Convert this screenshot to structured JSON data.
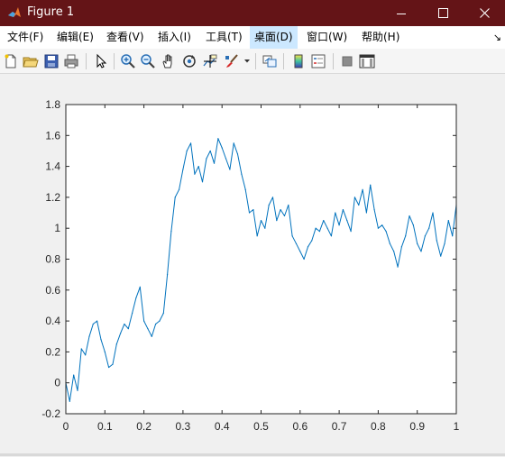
{
  "window": {
    "title": "Figure 1"
  },
  "menu": {
    "items": [
      {
        "label": "文件(F)"
      },
      {
        "label": "编辑(E)"
      },
      {
        "label": "查看(V)"
      },
      {
        "label": "插入(I)"
      },
      {
        "label": "工具(T)"
      },
      {
        "label": "桌面(D)"
      },
      {
        "label": "窗口(W)"
      },
      {
        "label": "帮助(H)"
      }
    ],
    "active_index": 5,
    "dock_glyph": "↘"
  },
  "toolbar": {
    "icons": [
      "new-figure-icon",
      "open-file-icon",
      "save-icon",
      "print-icon",
      "edit-plot-arrow-icon",
      "zoom-in-icon",
      "zoom-out-icon",
      "pan-hand-icon",
      "rotate-3d-icon",
      "data-cursor-icon",
      "brush-icon",
      "link-plot-icon",
      "insert-colorbar-icon",
      "insert-legend-icon",
      "hide-plot-tools-icon",
      "show-plot-tools-icon"
    ]
  },
  "colors": {
    "titlebar": "#641417",
    "line": "#0072BD",
    "active_menu": "#cce8ff"
  },
  "chart_data": {
    "type": "line",
    "title": "",
    "xlabel": "",
    "ylabel": "",
    "xlim": [
      0,
      1
    ],
    "ylim": [
      -0.2,
      1.8
    ],
    "xticks": [
      "0",
      "0.1",
      "0.2",
      "0.3",
      "0.4",
      "0.5",
      "0.6",
      "0.7",
      "0.8",
      "0.9",
      "1"
    ],
    "yticks": [
      "-0.2",
      "0",
      "0.2",
      "0.4",
      "0.6",
      "0.8",
      "1",
      "1.2",
      "1.4",
      "1.6",
      "1.8"
    ],
    "grid": false,
    "series": [
      {
        "color": "#0072BD",
        "x": [
          0,
          0.01,
          0.02,
          0.03,
          0.04,
          0.05,
          0.06,
          0.07,
          0.08,
          0.09,
          0.1,
          0.11,
          0.12,
          0.13,
          0.14,
          0.15,
          0.16,
          0.17,
          0.18,
          0.19,
          0.2,
          0.21,
          0.22,
          0.23,
          0.24,
          0.25,
          0.26,
          0.27,
          0.28,
          0.29,
          0.3,
          0.31,
          0.32,
          0.33,
          0.34,
          0.35,
          0.36,
          0.37,
          0.38,
          0.39,
          0.4,
          0.41,
          0.42,
          0.43,
          0.44,
          0.45,
          0.46,
          0.47,
          0.48,
          0.49,
          0.5,
          0.51,
          0.52,
          0.53,
          0.54,
          0.55,
          0.56,
          0.57,
          0.58,
          0.59,
          0.6,
          0.61,
          0.62,
          0.63,
          0.64,
          0.65,
          0.66,
          0.67,
          0.68,
          0.69,
          0.7,
          0.71,
          0.72,
          0.73,
          0.74,
          0.75,
          0.76,
          0.77,
          0.78,
          0.79,
          0.8,
          0.81,
          0.82,
          0.83,
          0.84,
          0.85,
          0.86,
          0.87,
          0.88,
          0.89,
          0.9,
          0.91,
          0.92,
          0.93,
          0.94,
          0.95,
          0.96,
          0.97,
          0.98,
          0.99,
          1.0
        ],
        "y": [
          0,
          -0.12,
          0.05,
          -0.05,
          0.22,
          0.18,
          0.3,
          0.38,
          0.4,
          0.28,
          0.2,
          0.1,
          0.12,
          0.25,
          0.32,
          0.38,
          0.35,
          0.45,
          0.55,
          0.62,
          0.4,
          0.35,
          0.3,
          0.38,
          0.4,
          0.45,
          0.7,
          0.98,
          1.2,
          1.25,
          1.38,
          1.5,
          1.55,
          1.35,
          1.4,
          1.3,
          1.45,
          1.5,
          1.42,
          1.58,
          1.52,
          1.45,
          1.38,
          1.55,
          1.48,
          1.35,
          1.25,
          1.1,
          1.12,
          0.95,
          1.05,
          1.0,
          1.15,
          1.2,
          1.05,
          1.12,
          1.08,
          1.15,
          0.95,
          0.9,
          0.85,
          0.8,
          0.88,
          0.92,
          1.0,
          0.98,
          1.05,
          1.0,
          0.95,
          1.1,
          1.02,
          1.12,
          1.05,
          0.98,
          1.2,
          1.15,
          1.25,
          1.1,
          1.28,
          1.12,
          1.0,
          1.02,
          0.98,
          0.9,
          0.85,
          0.75,
          0.88,
          0.95,
          1.08,
          1.02,
          0.9,
          0.85,
          0.95,
          1.0,
          1.1,
          0.92,
          0.82,
          0.9,
          1.05,
          0.95,
          1.15
        ]
      }
    ]
  }
}
